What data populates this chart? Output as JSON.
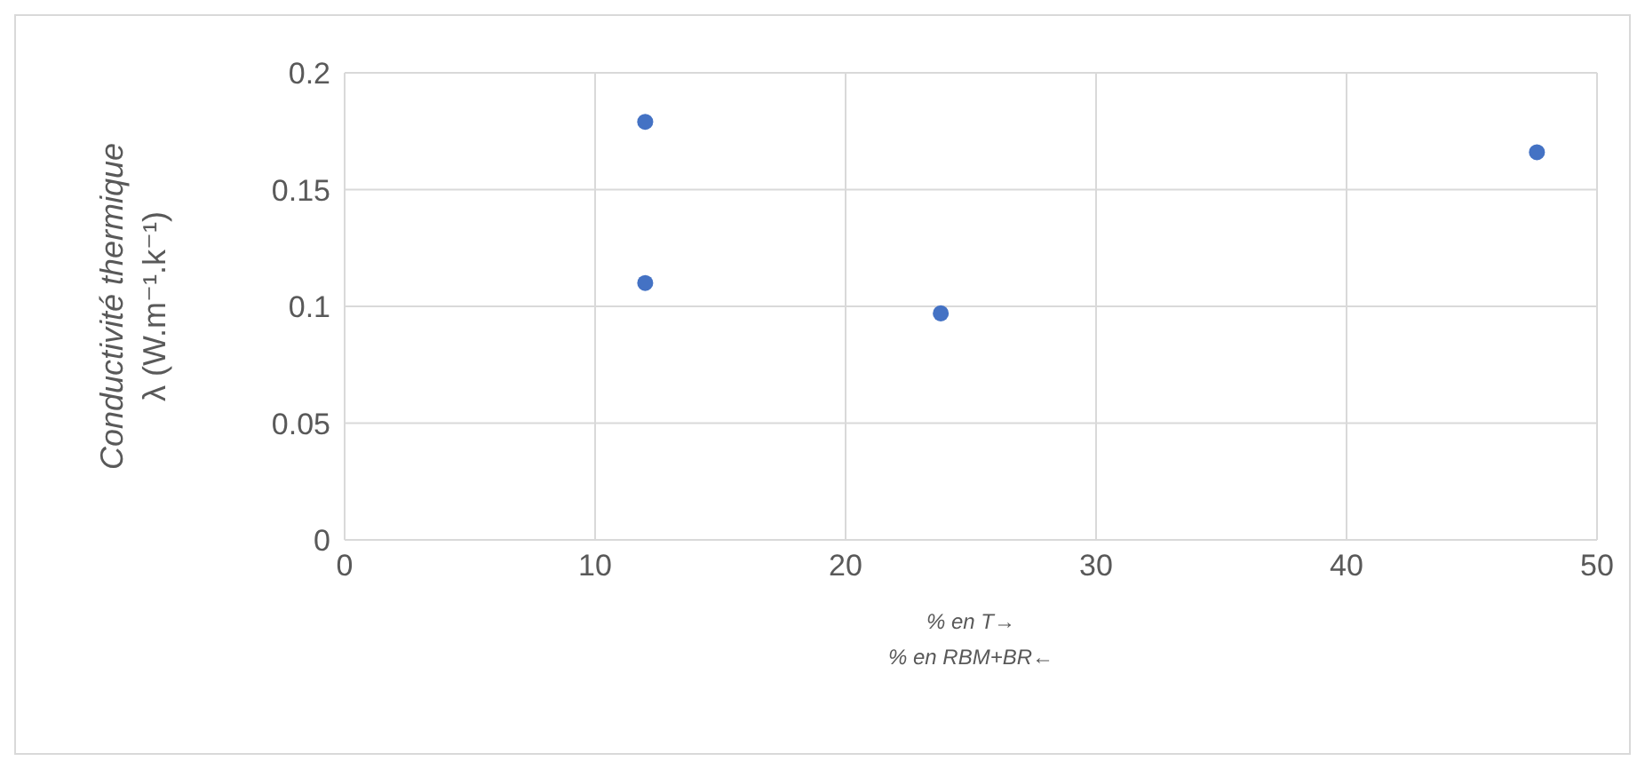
{
  "chart_data": {
    "type": "scatter",
    "xlabel": "% en T→\n% en RBM+BR←",
    "ylabel": "Conductivité thermique\nλ (W.m⁻¹.k⁻¹)",
    "x": [
      12,
      12,
      23.8,
      47.6
    ],
    "series": [
      {
        "color": "#4472c4",
        "values": [
          0.179,
          0.11,
          0.097,
          0.166
        ]
      }
    ],
    "xlim": [
      0,
      50
    ],
    "xticks": [
      0,
      10,
      20,
      30,
      40,
      50
    ],
    "ylim": [
      0,
      0.2
    ],
    "yticks": [
      0,
      0.05,
      0.1,
      0.15,
      0.2
    ],
    "grid": true,
    "marker": "circle"
  }
}
